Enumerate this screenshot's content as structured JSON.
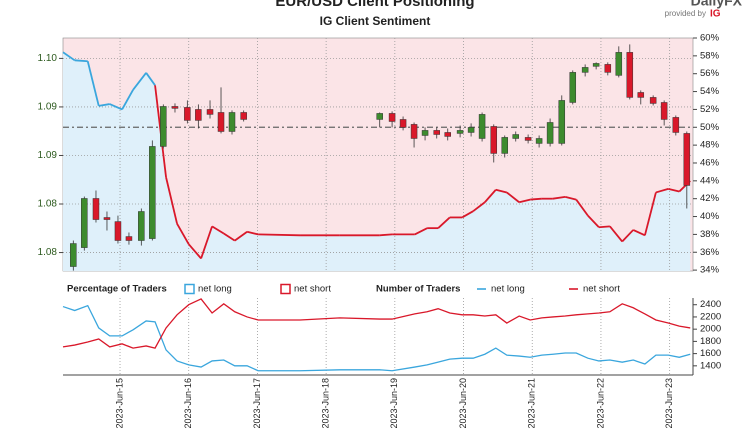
{
  "header": {
    "logo": "DailyFX",
    "tagline": "provided by",
    "brand": "IG"
  },
  "chart_data": [
    {
      "type": "candlestick",
      "title": "EUR/USD Client Positioning",
      "subtitle": "IG Client Sentiment",
      "up_color": "#3d8b2e",
      "down_color": "#d9182a",
      "x": [
        -0.68,
        -0.52,
        -0.35,
        -0.19,
        -0.03,
        0.13,
        0.31,
        0.47,
        0.63,
        0.8,
        0.98,
        1.14,
        1.31,
        1.47,
        1.63,
        1.8,
        3.78,
        3.96,
        4.12,
        4.28,
        4.44,
        4.61,
        4.77,
        4.95,
        5.11,
        5.27,
        5.44,
        5.6,
        5.76,
        5.94,
        6.1,
        6.26,
        6.43,
        6.59,
        6.77,
        6.93,
        7.1,
        7.26,
        7.42,
        7.58,
        7.76,
        7.92,
        8.09,
        8.25
      ],
      "open": [
        1.07856,
        1.08051,
        1.08557,
        1.08361,
        1.08319,
        1.08165,
        1.08124,
        1.08144,
        1.09093,
        1.09505,
        1.09495,
        1.09474,
        1.09474,
        1.09443,
        1.09247,
        1.09443,
        1.09371,
        1.09433,
        1.09371,
        1.0932,
        1.09206,
        1.09258,
        1.09237,
        1.09227,
        1.09237,
        1.09175,
        1.09299,
        1.09021,
        1.09175,
        1.09186,
        1.09124,
        1.09124,
        1.09124,
        1.09546,
        1.09856,
        1.09918,
        1.09938,
        1.09825,
        1.10062,
        1.09649,
        1.09598,
        1.09546,
        1.09392,
        1.09227
      ],
      "high": [
        1.08124,
        1.08577,
        1.08639,
        1.08423,
        1.08381,
        1.08206,
        1.08454,
        1.09155,
        1.09526,
        1.09536,
        1.09567,
        1.09526,
        1.09567,
        1.09701,
        1.09464,
        1.09464,
        1.09443,
        1.09454,
        1.09402,
        1.0934,
        1.09289,
        1.09289,
        1.09278,
        1.09309,
        1.0933,
        1.09443,
        1.0932,
        1.09206,
        1.09247,
        1.09216,
        1.09206,
        1.09381,
        1.09619,
        1.09876,
        1.09938,
        1.09959,
        1.09959,
        1.10124,
        1.10144,
        1.0967,
        1.09619,
        1.09567,
        1.09412,
        1.09247
      ],
      "low": [
        1.07814,
        1.0802,
        1.08309,
        1.08227,
        1.08093,
        1.08082,
        1.08072,
        1.08124,
        1.09072,
        1.09443,
        1.0933,
        1.09278,
        1.09381,
        1.09227,
        1.09216,
        1.0935,
        1.09289,
        1.09289,
        1.09258,
        1.09082,
        1.09155,
        1.09175,
        1.09155,
        1.09186,
        1.09196,
        1.09144,
        1.08928,
        1.08979,
        1.09144,
        1.09124,
        1.09082,
        1.09093,
        1.09103,
        1.09526,
        1.09814,
        1.09887,
        1.09825,
        1.09804,
        1.09577,
        1.09526,
        1.09515,
        1.09309,
        1.09206,
        1.08454
      ],
      "close": [
        1.08093,
        1.08557,
        1.0834,
        1.0834,
        1.08124,
        1.08124,
        1.08423,
        1.09093,
        1.09505,
        1.09485,
        1.09361,
        1.09361,
        1.09423,
        1.09247,
        1.09443,
        1.09371,
        1.09433,
        1.0935,
        1.09289,
        1.09175,
        1.09258,
        1.09216,
        1.09196,
        1.09258,
        1.09289,
        1.09423,
        1.09021,
        1.09186,
        1.09216,
        1.09155,
        1.09175,
        1.0934,
        1.09567,
        1.09856,
        1.09907,
        1.09948,
        1.09856,
        1.10062,
        1.09598,
        1.09598,
        1.09536,
        1.09371,
        1.09237,
        1.08691
      ],
      "xlim": [
        -0.83,
        8.34
      ],
      "ylim": [
        1.0781,
        1.1021
      ],
      "yticks": [
        {
          "value": 1.1,
          "label": "1.10"
        },
        {
          "value": 1.095,
          "label": "1.09"
        },
        {
          "value": 1.09,
          "label": "1.09"
        },
        {
          "value": 1.085,
          "label": "1.08"
        },
        {
          "value": 1.08,
          "label": "1.08"
        }
      ],
      "y2lim": [
        33.9,
        60
      ],
      "y2ticks": [
        {
          "value": 34,
          "label": "34%"
        },
        {
          "value": 36,
          "label": "36%"
        },
        {
          "value": 38,
          "label": "38%"
        },
        {
          "value": 40,
          "label": "40%"
        },
        {
          "value": 42,
          "label": "42%"
        },
        {
          "value": 44,
          "label": "44%"
        },
        {
          "value": 46,
          "label": "46%"
        },
        {
          "value": 48,
          "label": "48%"
        },
        {
          "value": 50,
          "label": "50%"
        },
        {
          "value": 52,
          "label": "52%"
        },
        {
          "value": 54,
          "label": "54%"
        },
        {
          "value": 56,
          "label": "56%"
        },
        {
          "value": 58,
          "label": "58%"
        },
        {
          "value": 60,
          "label": "60%"
        }
      ],
      "grid": true,
      "sentiment": {
        "legend_title": "Percentage of Traders",
        "axis": "y2",
        "reference": 50,
        "above": {
          "name": "net long",
          "color": "#3aa6dd"
        },
        "below": {
          "name": "net short",
          "color": "#d9182a"
        },
        "x": [
          -0.83,
          -0.66,
          -0.47,
          -0.31,
          -0.15,
          0.03,
          0.19,
          0.38,
          0.51,
          0.67,
          0.83,
          1.0,
          1.18,
          1.34,
          1.51,
          1.67,
          1.85,
          2.01,
          2.62,
          3.2,
          3.78,
          3.96,
          4.29,
          4.47,
          4.63,
          4.8,
          4.98,
          5.14,
          5.31,
          5.47,
          5.63,
          5.81,
          5.97,
          6.14,
          6.3,
          6.48,
          6.64,
          6.81,
          6.97,
          7.13,
          7.31,
          7.47,
          7.64,
          7.8,
          7.98,
          8.14,
          8.3
        ],
        "values": [
          58.4,
          57.5,
          57.4,
          52.4,
          52.6,
          52.0,
          54.2,
          56.1,
          54.7,
          44.4,
          39.2,
          36.9,
          35.3,
          38.9,
          38.1,
          37.3,
          38.3,
          38.0,
          37.9,
          37.9,
          37.9,
          38.0,
          38.0,
          38.7,
          38.7,
          39.9,
          39.9,
          40.6,
          41.6,
          43.0,
          42.7,
          41.6,
          41.9,
          42.0,
          42.0,
          42.2,
          41.9,
          40.1,
          38.8,
          38.9,
          37.2,
          38.5,
          37.9,
          42.7,
          43.1,
          42.8,
          44.0
        ]
      }
    },
    {
      "type": "line",
      "legend_title": "Number of Traders",
      "x": [
        -0.83,
        -0.66,
        -0.47,
        -0.31,
        -0.15,
        0.03,
        0.19,
        0.38,
        0.51,
        0.67,
        0.83,
        1.0,
        1.18,
        1.34,
        1.51,
        1.67,
        1.85,
        2.01,
        2.62,
        3.2,
        3.78,
        3.96,
        4.29,
        4.47,
        4.63,
        4.8,
        4.98,
        5.14,
        5.31,
        5.47,
        5.63,
        5.81,
        5.97,
        6.14,
        6.3,
        6.48,
        6.64,
        6.81,
        6.97,
        7.13,
        7.31,
        7.47,
        7.64,
        7.8,
        7.98,
        8.14,
        8.3
      ],
      "series": [
        {
          "name": "net long",
          "color": "#3aa6dd",
          "values": [
            2370,
            2305,
            2385,
            2020,
            1890,
            1890,
            1990,
            2135,
            2120,
            1660,
            1480,
            1415,
            1380,
            1480,
            1495,
            1400,
            1400,
            1320,
            1320,
            1335,
            1335,
            1320,
            1380,
            1415,
            1460,
            1510,
            1525,
            1525,
            1590,
            1690,
            1575,
            1560,
            1540,
            1575,
            1590,
            1610,
            1610,
            1525,
            1480,
            1495,
            1460,
            1495,
            1430,
            1575,
            1575,
            1540,
            1590
          ]
        },
        {
          "name": "net short",
          "color": "#d9182a",
          "values": [
            1710,
            1740,
            1790,
            1840,
            1710,
            1760,
            1690,
            1725,
            1690,
            2020,
            2235,
            2400,
            2495,
            2265,
            2415,
            2285,
            2200,
            2150,
            2150,
            2185,
            2165,
            2165,
            2250,
            2285,
            2335,
            2265,
            2235,
            2235,
            2215,
            2235,
            2100,
            2215,
            2150,
            2185,
            2200,
            2215,
            2235,
            2250,
            2265,
            2285,
            2415,
            2350,
            2250,
            2150,
            2100,
            2050,
            2020
          ]
        }
      ],
      "xlim": [
        -0.83,
        8.34
      ],
      "xticks": [
        {
          "value": 0,
          "label": "2023-Jun-15"
        },
        {
          "value": 1,
          "label": "2023-Jun-16"
        },
        {
          "value": 2,
          "label": "2023-Jun-17"
        },
        {
          "value": 3,
          "label": "2023-Jun-18"
        },
        {
          "value": 4,
          "label": "2023-Jun-19"
        },
        {
          "value": 5,
          "label": "2023-Jun-20"
        },
        {
          "value": 6,
          "label": "2023-Jun-21"
        },
        {
          "value": 7,
          "label": "2023-Jun-22"
        },
        {
          "value": 8,
          "label": "2023-Jun-23"
        }
      ],
      "ylim": [
        1250,
        2510
      ],
      "yticks": [
        1400,
        1600,
        1800,
        2000,
        2200,
        2400
      ]
    }
  ]
}
